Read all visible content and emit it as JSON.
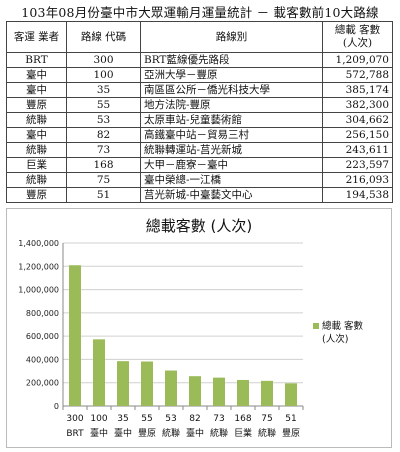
{
  "title": "103年08月份臺中市大眾運輸月運量統計 － 載客數前10大路線",
  "table": {
    "headers": [
      "客運 業者",
      "路線 代碼",
      "路線別",
      "總載 客數 (人次)"
    ],
    "rows": [
      {
        "operator": "BRT",
        "code": "300",
        "route": "BRT藍線優先路段",
        "passengers": "1,209,070"
      },
      {
        "operator": "臺中",
        "code": "100",
        "route": "亞洲大學－豐原",
        "passengers": "572,788"
      },
      {
        "operator": "臺中",
        "code": "35",
        "route": "南區區公所－僑光科技大學",
        "passengers": "385,174"
      },
      {
        "operator": "豐原",
        "code": "55",
        "route": "地方法院-豐原",
        "passengers": "382,300"
      },
      {
        "operator": "統聯",
        "code": "53",
        "route": "太原車站-兒童藝術館",
        "passengers": "304,662"
      },
      {
        "operator": "臺中",
        "code": "82",
        "route": "高鐵臺中站－貿易三村",
        "passengers": "256,150"
      },
      {
        "operator": "統聯",
        "code": "73",
        "route": "統聯轉運站-莒光新城",
        "passengers": "243,611"
      },
      {
        "operator": "巨業",
        "code": "168",
        "route": "大甲－鹿寮－臺中",
        "passengers": "223,597"
      },
      {
        "operator": "統聯",
        "code": "75",
        "route": "臺中榮總-一江橋",
        "passengers": "216,093"
      },
      {
        "operator": "豐原",
        "code": "51",
        "route": "莒光新城-中臺藝文中心",
        "passengers": "194,538"
      }
    ]
  },
  "chart_data": {
    "type": "bar",
    "title": "總載客數 (人次)",
    "categories": [
      "300",
      "100",
      "35",
      "55",
      "53",
      "82",
      "73",
      "168",
      "75",
      "51"
    ],
    "categories_line2": [
      "BRT",
      "臺中",
      "臺中",
      "豐原",
      "統聯",
      "臺中",
      "統聯",
      "巨業",
      "統聯",
      "豐原"
    ],
    "series": [
      {
        "name": "總載 客數 (人次)",
        "values": [
          1209070,
          572788,
          385174,
          382300,
          304662,
          256150,
          243611,
          223597,
          216093,
          194538
        ]
      }
    ],
    "ylim": [
      0,
      1400000
    ],
    "yticks": [
      0,
      200000,
      400000,
      600000,
      800000,
      1000000,
      1200000,
      1400000
    ],
    "ytick_labels": [
      "0",
      "200,000",
      "400,000",
      "600,000",
      "800,000",
      "1,000,000",
      "1,200,000",
      "1,400,000"
    ],
    "grid": true,
    "legend_position": "right",
    "legend_lines": [
      "總載 客數",
      "(人次)"
    ],
    "color": "#9bbb59"
  }
}
